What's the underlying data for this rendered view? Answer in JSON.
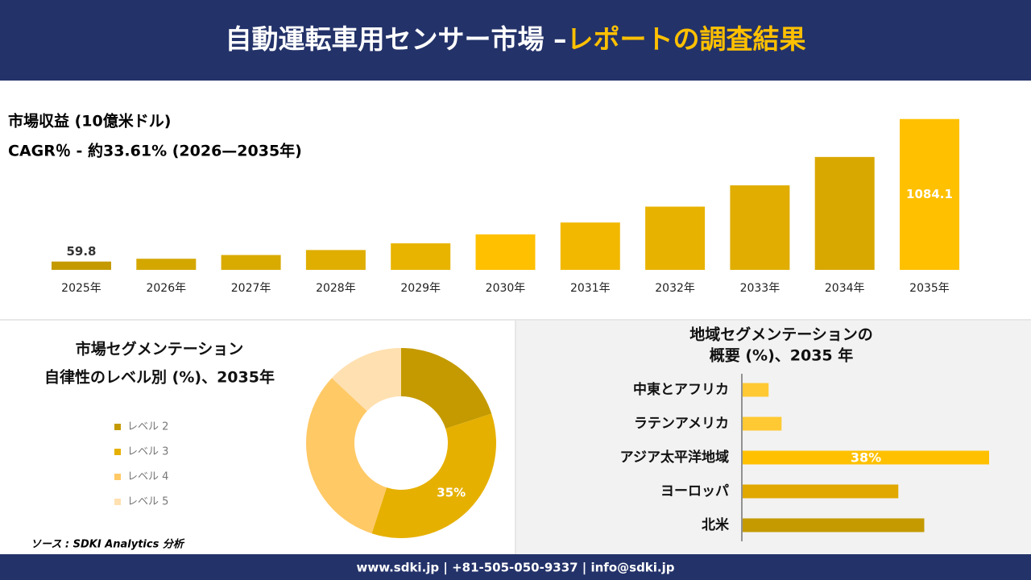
{
  "header": {
    "title_main": "自動運転車用センサー市場 –",
    "title_accent": "レポートの調査結果"
  },
  "chart_data": [
    {
      "type": "bar",
      "title": "市場収益 (10億米ドル)",
      "subtitle": "CAGR％ - 約33.61% (2026—2035年)",
      "categories": [
        "2025年",
        "2026年",
        "2027年",
        "2028年",
        "2029年",
        "2030年",
        "2031年",
        "2032年",
        "2033年",
        "2034年",
        "2035年"
      ],
      "values": [
        59.8,
        79.9,
        106.7,
        142.6,
        190.6,
        254.6,
        340.2,
        454.5,
        607.3,
        811.4,
        1084.1
      ],
      "value_labels": [
        "59.8",
        null,
        null,
        null,
        null,
        null,
        null,
        null,
        null,
        null,
        "1084.1"
      ],
      "colors": [
        "#c49a00",
        "#d4a700",
        "#d9aa00",
        "#dfae00",
        "#e8b400",
        "#ffc000",
        "#f2b800",
        "#e8b200",
        "#e0ad00",
        "#d9a800",
        "#ffc000"
      ],
      "ylim": [
        0,
        1100
      ]
    },
    {
      "type": "donut",
      "title": [
        "市場セグメンテーション",
        "自律性のレベル別 (%)、2035年"
      ],
      "categories": [
        "レベル 2",
        "レベル 3",
        "レベル 4",
        "レベル 5"
      ],
      "values": [
        20,
        35,
        32,
        13
      ],
      "value_labels": [
        null,
        "35%",
        null,
        null
      ],
      "colors": [
        "#c49a00",
        "#e6b000",
        "#ffc966",
        "#ffe0b0"
      ]
    },
    {
      "type": "hbar",
      "title": [
        "地域セグメンテーションの",
        "概要 (%)、2035 年"
      ],
      "categories": [
        "中東とアフリカ",
        "ラテンアメリカ",
        "アジア太平洋地域",
        "ヨーロッパ",
        "北米"
      ],
      "values": [
        4,
        6,
        38,
        24,
        28
      ],
      "value_labels": [
        null,
        null,
        "38%",
        null,
        null
      ],
      "colors": [
        "#ffc933",
        "#ffc933",
        "#ffc000",
        "#e0a800",
        "#c49a00"
      ],
      "xlim": [
        0,
        38
      ]
    }
  ],
  "source": "ソース : SDKI Analytics 分析",
  "footer": "www.sdki.jp | +81-505-050-9337 | info@sdki.jp"
}
